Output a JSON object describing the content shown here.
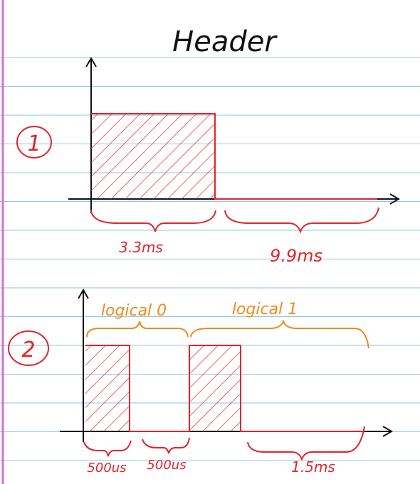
{
  "title": "Header",
  "colors": {
    "rule": "#8ec6ea",
    "margin": "#d070d0",
    "ink_black": "#111111",
    "ink_red": "#e3242b",
    "ink_orange": "#f08a1c"
  },
  "diagram1": {
    "label": "1",
    "high_time": "3.3ms",
    "low_time": "9.9ms"
  },
  "diagram2": {
    "label": "2",
    "logical_zero": "logical 0",
    "logical_one": "logical 1",
    "pulse_zero_time": "500us",
    "gap_zero_time": "500us",
    "low_one_time": "1.5ms"
  }
}
